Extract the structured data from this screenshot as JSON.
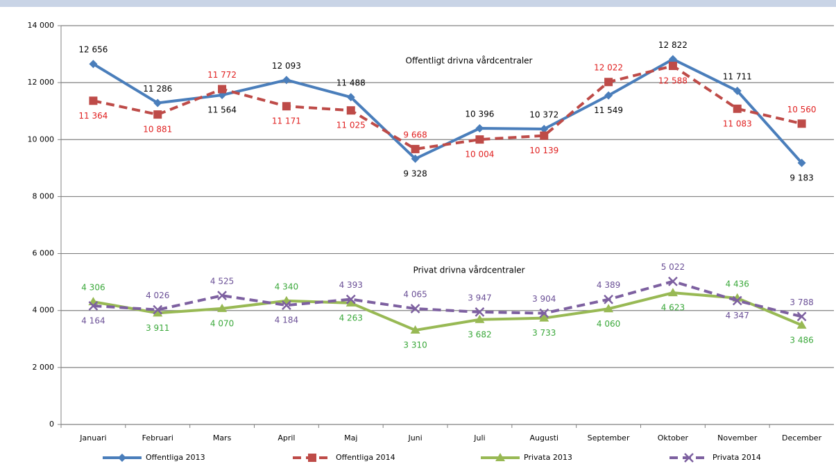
{
  "chart_data": {
    "type": "line",
    "annotations": [
      "Offentligt drivna vårdcentraler",
      "Privat drivna vårdcentraler"
    ],
    "categories": [
      "Januari",
      "Februari",
      "Mars",
      "April",
      "Maj",
      "Juni",
      "Juli",
      "Augusti",
      "September",
      "Oktober",
      "November",
      "December"
    ],
    "ylim": [
      0,
      14000
    ],
    "yticks": [
      0,
      {
        "value": 2000,
        "label": "2 000"
      },
      {
        "value": 4000,
        "label": "4 000"
      },
      {
        "value": 6000,
        "label": "6 000"
      },
      {
        "value": 8000,
        "label": "8 000"
      },
      {
        "value": 10000,
        "label": "10 000"
      },
      {
        "value": 12000,
        "label": "12 000"
      },
      {
        "value": 14000,
        "label": "14 000"
      }
    ],
    "grid": true,
    "legend": "bottom",
    "series": [
      {
        "name": "Offentliga 2013",
        "color": "#4a7ebb",
        "label_color": "#000000",
        "marker": "diamond",
        "dash": false,
        "values": [
          12656,
          11286,
          11564,
          12093,
          11488,
          9328,
          10396,
          10372,
          11549,
          12822,
          11711,
          9183
        ],
        "value_labels": [
          "12 656",
          "11 286",
          "11 564",
          "12 093",
          "11 488",
          "9 328",
          "10 396",
          "10 372",
          "11 549",
          "12 822",
          "11 711",
          "9 183"
        ]
      },
      {
        "name": "Offentliga 2014",
        "color": "#be4b48",
        "label_color": "#e02020",
        "marker": "square",
        "dash": true,
        "values": [
          11364,
          10881,
          11772,
          11171,
          11025,
          9668,
          10004,
          10139,
          12022,
          12588,
          11083,
          10560
        ],
        "value_labels": [
          "11 364",
          "10 881",
          "11 772",
          "11 171",
          "11 025",
          "9 668",
          "10 004",
          "10 139",
          "12 022",
          "12 588",
          "11 083",
          "10 560"
        ]
      },
      {
        "name": "Privata 2013",
        "color": "#98b954",
        "label_color": "#3aa83a",
        "marker": "triangle",
        "dash": false,
        "values": [
          4306,
          3911,
          4070,
          4340,
          4263,
          3310,
          3682,
          3733,
          4060,
          4623,
          4436,
          3486
        ],
        "value_labels": [
          "4 306",
          "3 911",
          "4 070",
          "4 340",
          "4 263",
          "3 310",
          "3 682",
          "3 733",
          "4 060",
          "4 623",
          "4 436",
          "3 486"
        ]
      },
      {
        "name": "Privata 2014",
        "color": "#7d60a0",
        "label_color": "#6a4f96",
        "marker": "x",
        "dash": true,
        "values": [
          4164,
          4026,
          4525,
          4184,
          4393,
          4065,
          3947,
          3904,
          4389,
          5022,
          4347,
          3788
        ],
        "value_labels": [
          "4 164",
          "4 026",
          "4 525",
          "4 184",
          "4 393",
          "4 065",
          "3 947",
          "3 904",
          "4 389",
          "5 022",
          "4 347",
          "3 788"
        ]
      }
    ]
  }
}
